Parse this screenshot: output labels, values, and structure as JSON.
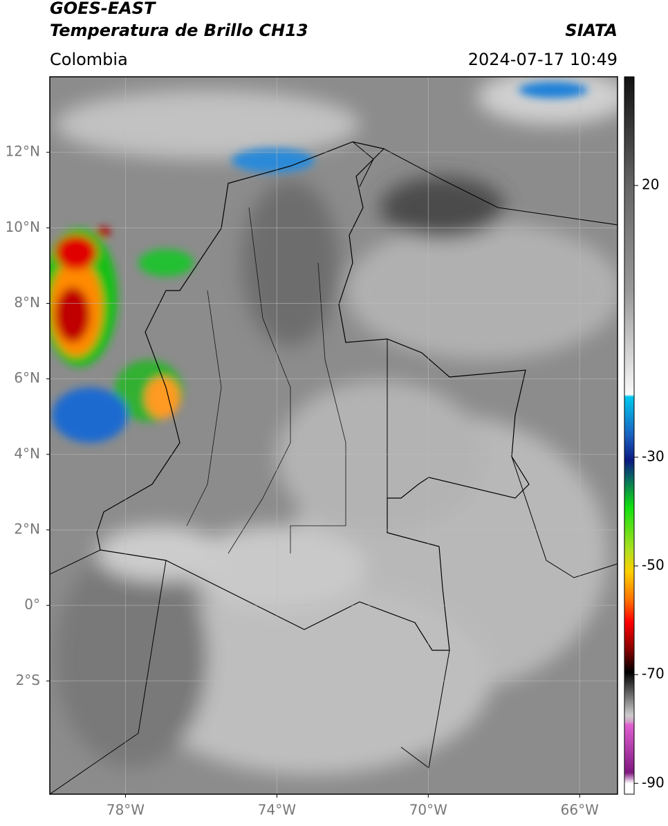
{
  "chart_data": {
    "type": "map",
    "title": "GOES-EAST",
    "subtitle": "Temperatura de Brillo CH13",
    "source": "SIATA",
    "region": "Colombia",
    "datetime": "2024-07-17 10:49",
    "xlim": [
      -80,
      -65
    ],
    "ylim": [
      -5,
      14
    ],
    "xticks": [
      {
        "value": -78,
        "label": "78°W"
      },
      {
        "value": -74,
        "label": "74°W"
      },
      {
        "value": -70,
        "label": "70°W"
      },
      {
        "value": -66,
        "label": "66°W"
      }
    ],
    "yticks": [
      {
        "value": 12,
        "label": "12°N"
      },
      {
        "value": 10,
        "label": "10°N"
      },
      {
        "value": 8,
        "label": "8°N"
      },
      {
        "value": 6,
        "label": "6°N"
      },
      {
        "value": 4,
        "label": "4°N"
      },
      {
        "value": 2,
        "label": "2°N"
      },
      {
        "value": 0,
        "label": "0°"
      },
      {
        "value": -2,
        "label": "2°S"
      }
    ],
    "grid": true,
    "colorbar": {
      "lim": [
        -92,
        40
      ],
      "ticks": [
        20,
        -30,
        -50,
        -70,
        -90
      ]
    }
  }
}
